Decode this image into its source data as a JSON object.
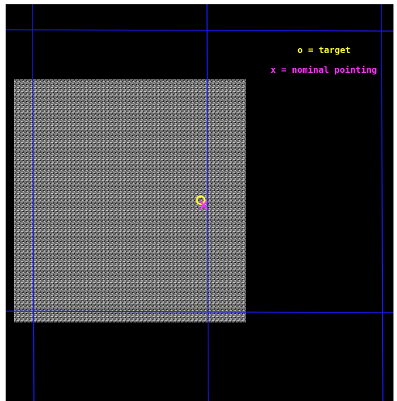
{
  "legend": {
    "target_text": "o = target",
    "nominal_text": "x = nominal pointing"
  },
  "markers": {
    "target_symbol": "o",
    "nominal_symbol": "x"
  },
  "colors": {
    "background": "#000000",
    "grid": "#1a1aff",
    "field": "#8a8a8a",
    "target": "#ffff33",
    "nominal": "#ff33ff"
  }
}
